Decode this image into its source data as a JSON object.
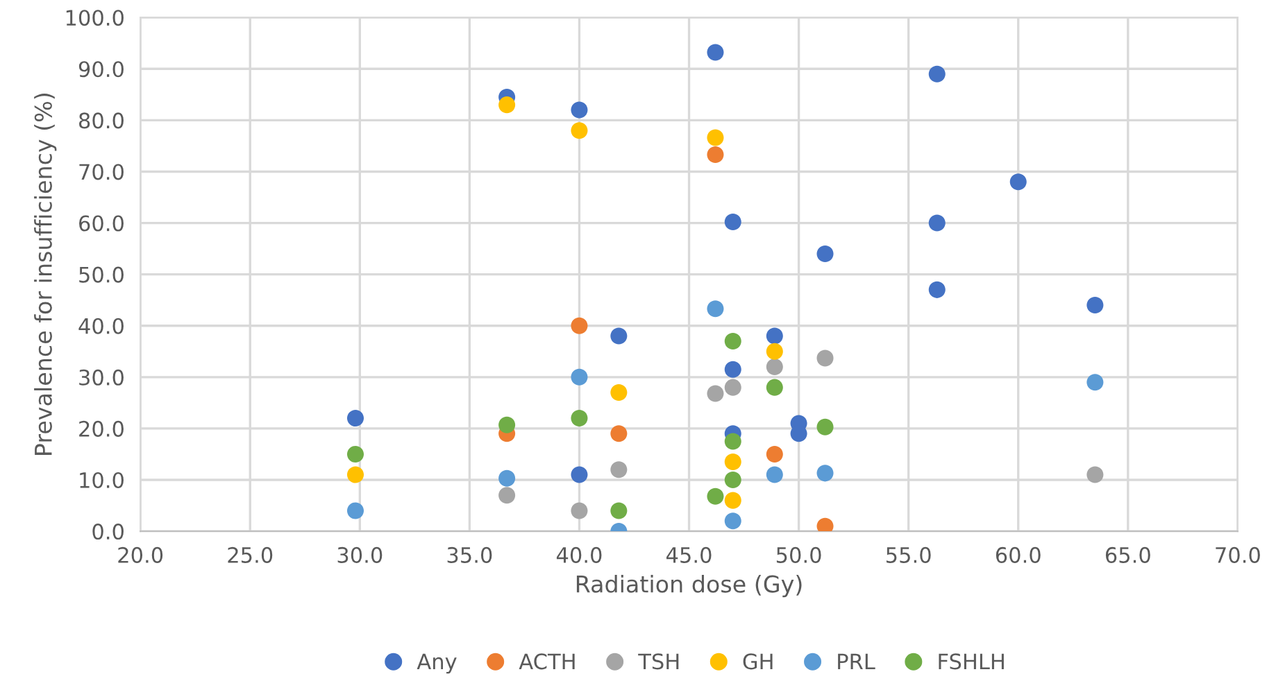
{
  "chart_data": {
    "type": "scatter",
    "xlabel": "Radiation dose (Gy)",
    "ylabel": "Prevalence for insufficiency (%)",
    "xlim": [
      20,
      70
    ],
    "xticks": [
      {
        "value": 20,
        "label": "20.0"
      },
      {
        "value": 25,
        "label": "25.0"
      },
      {
        "value": 30,
        "label": "30.0"
      },
      {
        "value": 35,
        "label": "35.0"
      },
      {
        "value": 40,
        "label": "40.0"
      },
      {
        "value": 45,
        "label": "45.0"
      },
      {
        "value": 50,
        "label": "50.0"
      },
      {
        "value": 55,
        "label": "55.0"
      },
      {
        "value": 60,
        "label": "60.0"
      },
      {
        "value": 65,
        "label": "65.0"
      },
      {
        "value": 70,
        "label": "70.0"
      }
    ],
    "ylim": [
      0,
      100
    ],
    "yticks": [
      {
        "value": 0,
        "label": "0.0"
      },
      {
        "value": 10,
        "label": "10.0"
      },
      {
        "value": 20,
        "label": "20.0"
      },
      {
        "value": 30,
        "label": "30.0"
      },
      {
        "value": 40,
        "label": "40.0"
      },
      {
        "value": 50,
        "label": "50.0"
      },
      {
        "value": 60,
        "label": "60.0"
      },
      {
        "value": 70,
        "label": "70.0"
      },
      {
        "value": 80,
        "label": "80.0"
      },
      {
        "value": 90,
        "label": "90.0"
      },
      {
        "value": 100,
        "label": "100.0"
      }
    ],
    "grid": true,
    "legend": "bottom",
    "marker": "circle",
    "series": [
      {
        "name": "Any",
        "color": "#4472c4",
        "x": [
          29.8,
          36.7,
          40,
          40,
          41.8,
          46.2,
          47,
          47,
          47,
          48.9,
          50,
          50,
          51.2,
          56.3,
          56.3,
          56.3,
          60,
          63.5
        ],
        "values": [
          22,
          84.5,
          82,
          11,
          38,
          93.2,
          60.2,
          31.5,
          19,
          38,
          21,
          19,
          54,
          89,
          60,
          47,
          68,
          44
        ]
      },
      {
        "name": "ACTH",
        "color": "#ed7d31",
        "x": [
          36.7,
          40,
          41.8,
          46.2,
          48.9,
          51.2
        ],
        "values": [
          19,
          40,
          19,
          73.3,
          15,
          1
        ]
      },
      {
        "name": "TSH",
        "color": "#a5a5a5",
        "x": [
          36.7,
          40,
          41.8,
          46.2,
          47,
          48.9,
          51.2,
          63.5
        ],
        "values": [
          7,
          4,
          12,
          26.8,
          28,
          32,
          33.7,
          11
        ]
      },
      {
        "name": "GH",
        "color": "#ffc000",
        "x": [
          29.8,
          36.7,
          40,
          41.8,
          46.2,
          47,
          47,
          48.9
        ],
        "values": [
          11,
          83,
          78,
          27,
          76.6,
          13.5,
          6,
          35
        ]
      },
      {
        "name": "PRL",
        "color": "#5b9bd5",
        "x": [
          29.8,
          36.7,
          40,
          41.8,
          46.2,
          47,
          48.9,
          51.2,
          63.5
        ],
        "values": [
          4,
          10.3,
          30,
          0,
          43.3,
          2,
          11,
          11.3,
          29
        ]
      },
      {
        "name": "FSHLH",
        "color": "#70ad47",
        "x": [
          29.8,
          36.7,
          40,
          41.8,
          46.2,
          47,
          47,
          47,
          48.9,
          51.2
        ],
        "values": [
          15,
          20.7,
          22,
          4,
          6.8,
          37,
          17.5,
          10,
          28,
          20.3
        ]
      }
    ]
  }
}
